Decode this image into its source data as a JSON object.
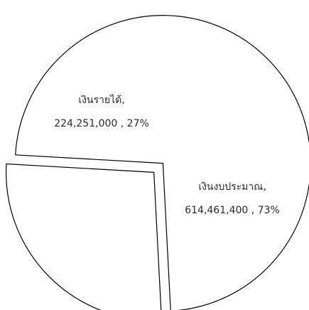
{
  "chart_data": {
    "type": "pie",
    "title": "",
    "legend": "none",
    "slices": [
      {
        "name": "เงินรายได้",
        "value": 224251000,
        "value_label": "224,251,000",
        "percent_label": "27%"
      },
      {
        "name": "เงินงบประมาณ",
        "value": 614461400,
        "value_label": "614,461,400",
        "percent_label": "73%"
      }
    ],
    "exploded": true
  }
}
